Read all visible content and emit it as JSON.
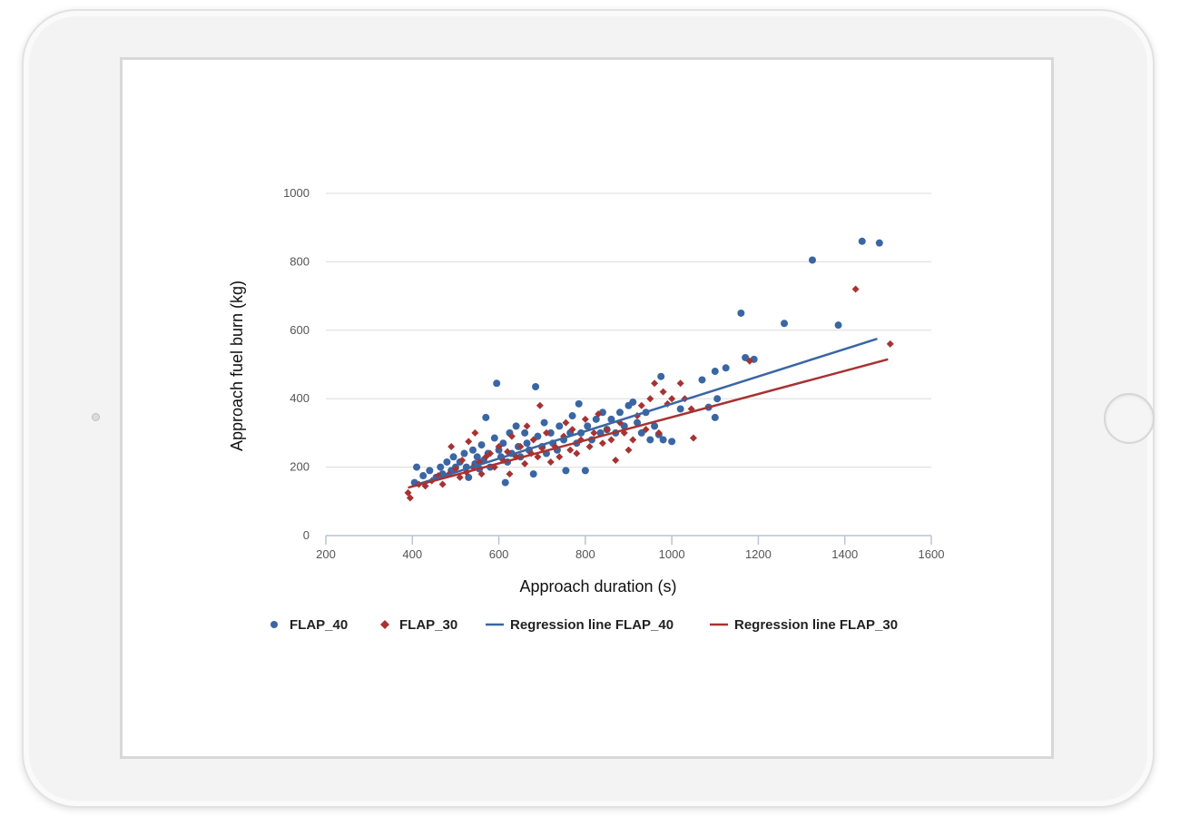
{
  "chart_data": {
    "type": "scatter",
    "title": "",
    "xlabel": "Approach duration (s)",
    "ylabel": "Approach fuel burn (kg)",
    "xlim": [
      200,
      1600
    ],
    "ylim": [
      0,
      1000
    ],
    "x_ticks": [
      200,
      400,
      600,
      800,
      1000,
      1200,
      1400,
      1600
    ],
    "y_ticks": [
      0,
      200,
      400,
      600,
      800,
      1000
    ],
    "x_tick_labels": [
      "200",
      "400",
      "600",
      "800",
      "1000",
      "1200",
      "1400",
      "1600"
    ],
    "y_tick_labels": [
      "0",
      "200",
      "400",
      "600",
      "800",
      "1000"
    ],
    "grid": "horizontal",
    "legend_position": "bottom",
    "colors": {
      "flap40": "#3a66a3",
      "flap30": "#a83232",
      "grid": "#dcdcdc",
      "axis": "#b8c4d6"
    },
    "series": [
      {
        "name": "FLAP_40",
        "kind": "scatter",
        "marker": "circle",
        "color": "#3a66a3",
        "points": [
          [
            405,
            155
          ],
          [
            410,
            200
          ],
          [
            425,
            175
          ],
          [
            440,
            190
          ],
          [
            455,
            170
          ],
          [
            465,
            200
          ],
          [
            470,
            180
          ],
          [
            480,
            215
          ],
          [
            490,
            190
          ],
          [
            495,
            230
          ],
          [
            500,
            200
          ],
          [
            510,
            215
          ],
          [
            520,
            240
          ],
          [
            525,
            200
          ],
          [
            530,
            170
          ],
          [
            540,
            250
          ],
          [
            545,
            210
          ],
          [
            550,
            230
          ],
          [
            555,
            195
          ],
          [
            560,
            265
          ],
          [
            565,
            220
          ],
          [
            570,
            345
          ],
          [
            575,
            240
          ],
          [
            580,
            200
          ],
          [
            590,
            285
          ],
          [
            595,
            445
          ],
          [
            600,
            250
          ],
          [
            605,
            230
          ],
          [
            610,
            270
          ],
          [
            615,
            155
          ],
          [
            620,
            215
          ],
          [
            625,
            300
          ],
          [
            630,
            240
          ],
          [
            640,
            320
          ],
          [
            645,
            260
          ],
          [
            650,
            230
          ],
          [
            660,
            300
          ],
          [
            665,
            270
          ],
          [
            670,
            250
          ],
          [
            680,
            180
          ],
          [
            685,
            435
          ],
          [
            690,
            290
          ],
          [
            700,
            260
          ],
          [
            705,
            330
          ],
          [
            710,
            240
          ],
          [
            720,
            300
          ],
          [
            725,
            270
          ],
          [
            735,
            250
          ],
          [
            740,
            320
          ],
          [
            750,
            280
          ],
          [
            755,
            190
          ],
          [
            765,
            300
          ],
          [
            770,
            350
          ],
          [
            780,
            270
          ],
          [
            785,
            385
          ],
          [
            790,
            300
          ],
          [
            800,
            190
          ],
          [
            805,
            320
          ],
          [
            815,
            280
          ],
          [
            825,
            340
          ],
          [
            835,
            300
          ],
          [
            840,
            360
          ],
          [
            850,
            310
          ],
          [
            860,
            340
          ],
          [
            870,
            300
          ],
          [
            880,
            360
          ],
          [
            890,
            320
          ],
          [
            900,
            380
          ],
          [
            910,
            390
          ],
          [
            920,
            330
          ],
          [
            930,
            300
          ],
          [
            940,
            360
          ],
          [
            950,
            280
          ],
          [
            960,
            320
          ],
          [
            970,
            295
          ],
          [
            975,
            465
          ],
          [
            980,
            280
          ],
          [
            1000,
            275
          ],
          [
            1020,
            370
          ],
          [
            1070,
            455
          ],
          [
            1085,
            375
          ],
          [
            1100,
            480
          ],
          [
            1105,
            400
          ],
          [
            1100,
            345
          ],
          [
            1125,
            490
          ],
          [
            1160,
            650
          ],
          [
            1170,
            520
          ],
          [
            1190,
            515
          ],
          [
            1260,
            620
          ],
          [
            1325,
            805
          ],
          [
            1385,
            615
          ],
          [
            1440,
            860
          ],
          [
            1480,
            855
          ]
        ]
      },
      {
        "name": "FLAP_30",
        "kind": "scatter",
        "marker": "diamond",
        "color": "#a83232",
        "points": [
          [
            390,
            125
          ],
          [
            395,
            110
          ],
          [
            415,
            150
          ],
          [
            430,
            145
          ],
          [
            445,
            160
          ],
          [
            460,
            175
          ],
          [
            470,
            150
          ],
          [
            485,
            180
          ],
          [
            490,
            260
          ],
          [
            500,
            195
          ],
          [
            510,
            170
          ],
          [
            515,
            220
          ],
          [
            525,
            185
          ],
          [
            530,
            275
          ],
          [
            540,
            200
          ],
          [
            545,
            300
          ],
          [
            555,
            215
          ],
          [
            560,
            180
          ],
          [
            570,
            230
          ],
          [
            580,
            240
          ],
          [
            590,
            200
          ],
          [
            600,
            260
          ],
          [
            610,
            220
          ],
          [
            620,
            245
          ],
          [
            625,
            180
          ],
          [
            630,
            290
          ],
          [
            640,
            230
          ],
          [
            650,
            260
          ],
          [
            660,
            210
          ],
          [
            665,
            320
          ],
          [
            675,
            240
          ],
          [
            680,
            280
          ],
          [
            690,
            230
          ],
          [
            695,
            380
          ],
          [
            700,
            255
          ],
          [
            710,
            300
          ],
          [
            720,
            215
          ],
          [
            730,
            260
          ],
          [
            740,
            230
          ],
          [
            750,
            290
          ],
          [
            755,
            330
          ],
          [
            765,
            250
          ],
          [
            770,
            310
          ],
          [
            780,
            240
          ],
          [
            790,
            280
          ],
          [
            800,
            340
          ],
          [
            810,
            260
          ],
          [
            820,
            300
          ],
          [
            830,
            355
          ],
          [
            840,
            270
          ],
          [
            850,
            310
          ],
          [
            860,
            280
          ],
          [
            870,
            220
          ],
          [
            880,
            330
          ],
          [
            890,
            300
          ],
          [
            900,
            250
          ],
          [
            910,
            280
          ],
          [
            920,
            350
          ],
          [
            930,
            380
          ],
          [
            940,
            310
          ],
          [
            950,
            400
          ],
          [
            960,
            445
          ],
          [
            970,
            300
          ],
          [
            980,
            420
          ],
          [
            990,
            385
          ],
          [
            1000,
            400
          ],
          [
            1020,
            445
          ],
          [
            1030,
            400
          ],
          [
            1045,
            370
          ],
          [
            1050,
            285
          ],
          [
            1180,
            510
          ],
          [
            1425,
            720
          ],
          [
            1505,
            560
          ]
        ]
      },
      {
        "name": "Regression line FLAP_40",
        "kind": "line",
        "color": "#3a66a3",
        "points": [
          [
            400,
            145
          ],
          [
            1475,
            575
          ]
        ]
      },
      {
        "name": "Regression line FLAP_30",
        "kind": "line",
        "color": "#a83232",
        "points": [
          [
            390,
            140
          ],
          [
            1500,
            515
          ]
        ]
      }
    ]
  },
  "legend": {
    "items": [
      {
        "label": "FLAP_40",
        "icon": "circle-marker-icon"
      },
      {
        "label": "FLAP_30",
        "icon": "diamond-marker-icon"
      },
      {
        "label": "Regression line FLAP_40",
        "icon": "line-marker-icon"
      },
      {
        "label": "Regression line FLAP_30",
        "icon": "line-marker-icon"
      }
    ]
  }
}
